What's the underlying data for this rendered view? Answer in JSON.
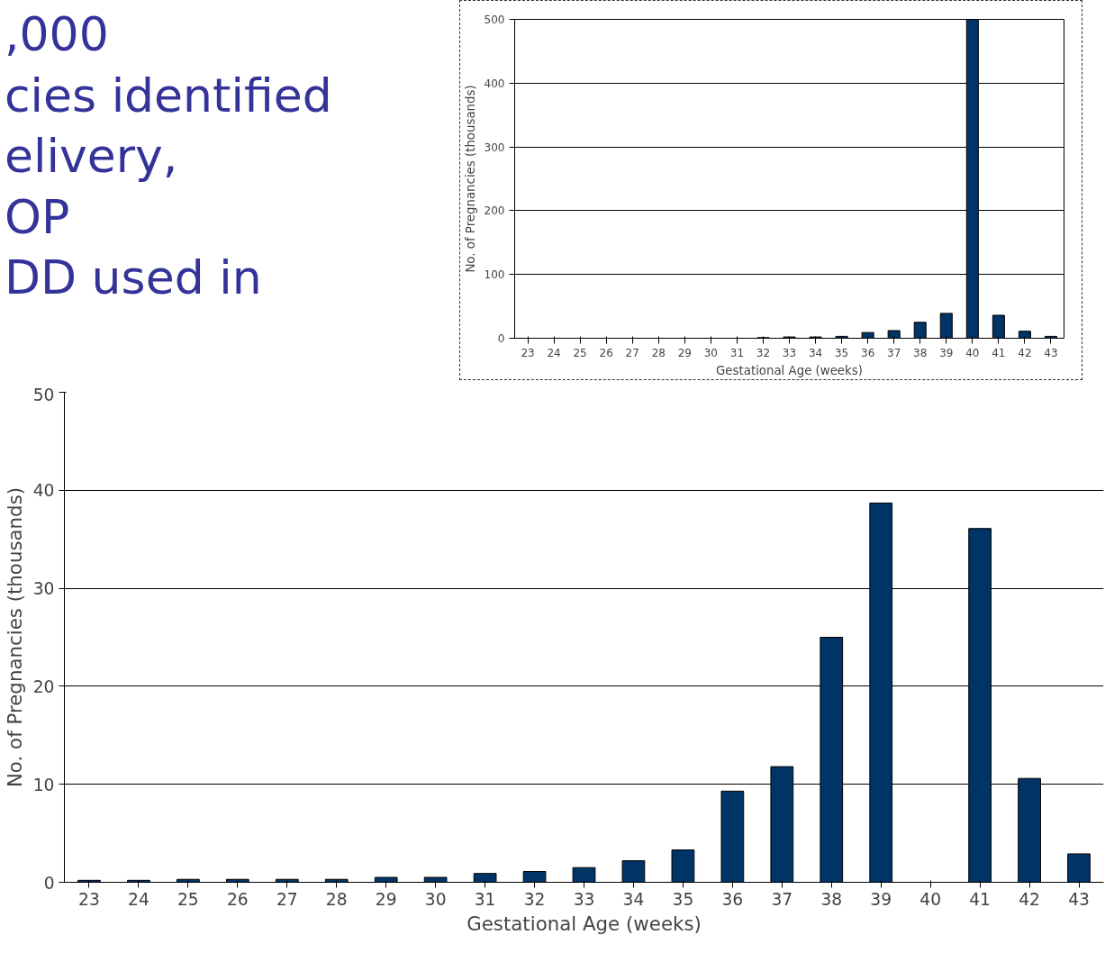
{
  "chart_data": [
    {
      "type": "bar",
      "xlabel": "Gestational Age (weeks)",
      "ylabel": "No. of Pregnancies (thousands)",
      "color": "#003366",
      "grid": "y",
      "ylim": [
        0,
        50
      ],
      "yticks": [
        0,
        10,
        20,
        30,
        40,
        50
      ],
      "categories": [
        "23",
        "24",
        "25",
        "26",
        "27",
        "28",
        "29",
        "30",
        "31",
        "32",
        "33",
        "34",
        "35",
        "36",
        "37",
        "38",
        "39",
        "40",
        "41",
        "42",
        "43"
      ],
      "values": [
        0.2,
        0.2,
        0.3,
        0.3,
        0.3,
        0.3,
        0.5,
        0.5,
        0.9,
        1.1,
        1.5,
        2.2,
        3.3,
        9.3,
        11.8,
        25,
        38.7,
        null,
        36.1,
        10.6,
        2.9
      ],
      "annotations": [
        ",000",
        "cies identified",
        "elivery,",
        "OP",
        "DD used in"
      ]
    },
    {
      "type": "bar",
      "xlabel": "Gestational Age (weeks)",
      "ylabel": "No. of Pregnancies (thousands)",
      "color": "#003366",
      "grid": "y",
      "ylim": [
        0,
        500
      ],
      "yticks": [
        0,
        100,
        200,
        300,
        400,
        500
      ],
      "categories": [
        "23",
        "24",
        "25",
        "26",
        "27",
        "28",
        "29",
        "30",
        "31",
        "32",
        "33",
        "34",
        "35",
        "36",
        "37",
        "38",
        "39",
        "40",
        "41",
        "42",
        "43"
      ],
      "values": [
        null,
        null,
        null,
        null,
        null,
        null,
        null,
        null,
        null,
        1,
        2,
        2,
        3,
        9,
        12,
        25,
        39,
        500,
        36,
        11,
        3
      ]
    }
  ]
}
